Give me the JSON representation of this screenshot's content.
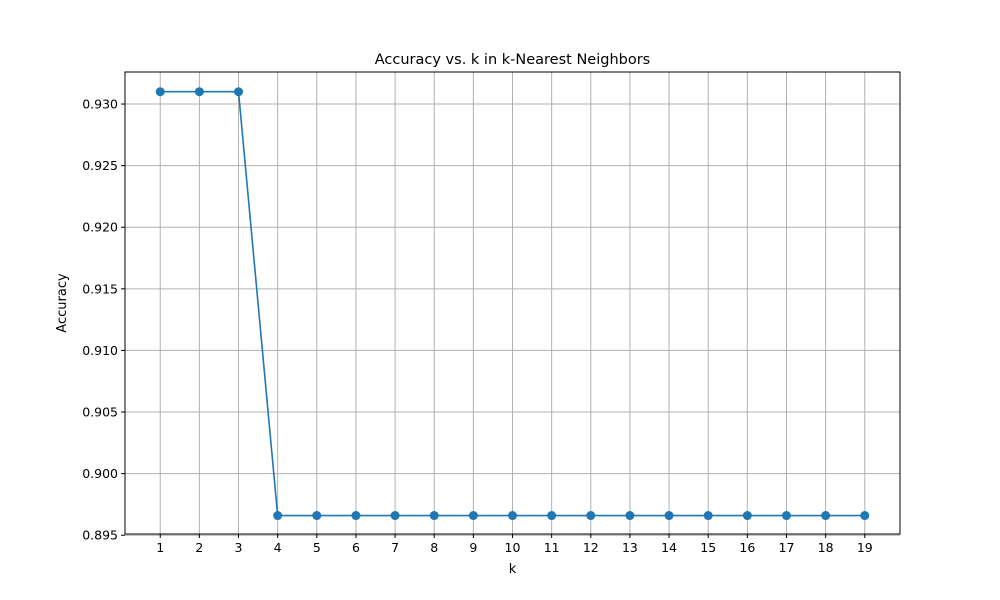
{
  "chart_data": {
    "type": "line",
    "title": "Accuracy vs. k in k-Nearest Neighbors",
    "xlabel": "k",
    "ylabel": "Accuracy",
    "x": [
      1,
      2,
      3,
      4,
      5,
      6,
      7,
      8,
      9,
      10,
      11,
      12,
      13,
      14,
      15,
      16,
      17,
      18,
      19
    ],
    "series": [
      {
        "values": [
          0.931,
          0.931,
          0.931,
          0.8966,
          0.8966,
          0.8966,
          0.8966,
          0.8966,
          0.8966,
          0.8966,
          0.8966,
          0.8966,
          0.8966,
          0.8966,
          0.8966,
          0.8966,
          0.8966,
          0.8966,
          0.8966
        ],
        "color": "#1f77b4",
        "marker": "circle"
      }
    ],
    "xlim": [
      0.1,
      19.9
    ],
    "ylim": [
      0.8951,
      0.9326
    ],
    "yticks": [
      "0.895",
      "0.900",
      "0.905",
      "0.910",
      "0.915",
      "0.920",
      "0.925",
      "0.930"
    ],
    "ytick_values": [
      0.895,
      0.9,
      0.905,
      0.91,
      0.915,
      0.92,
      0.925,
      0.93
    ],
    "xticks": [
      "1",
      "2",
      "3",
      "4",
      "5",
      "6",
      "7",
      "8",
      "9",
      "10",
      "11",
      "12",
      "13",
      "14",
      "15",
      "16",
      "17",
      "18",
      "19"
    ],
    "grid": true,
    "grid_color": "#b0b0b0"
  }
}
